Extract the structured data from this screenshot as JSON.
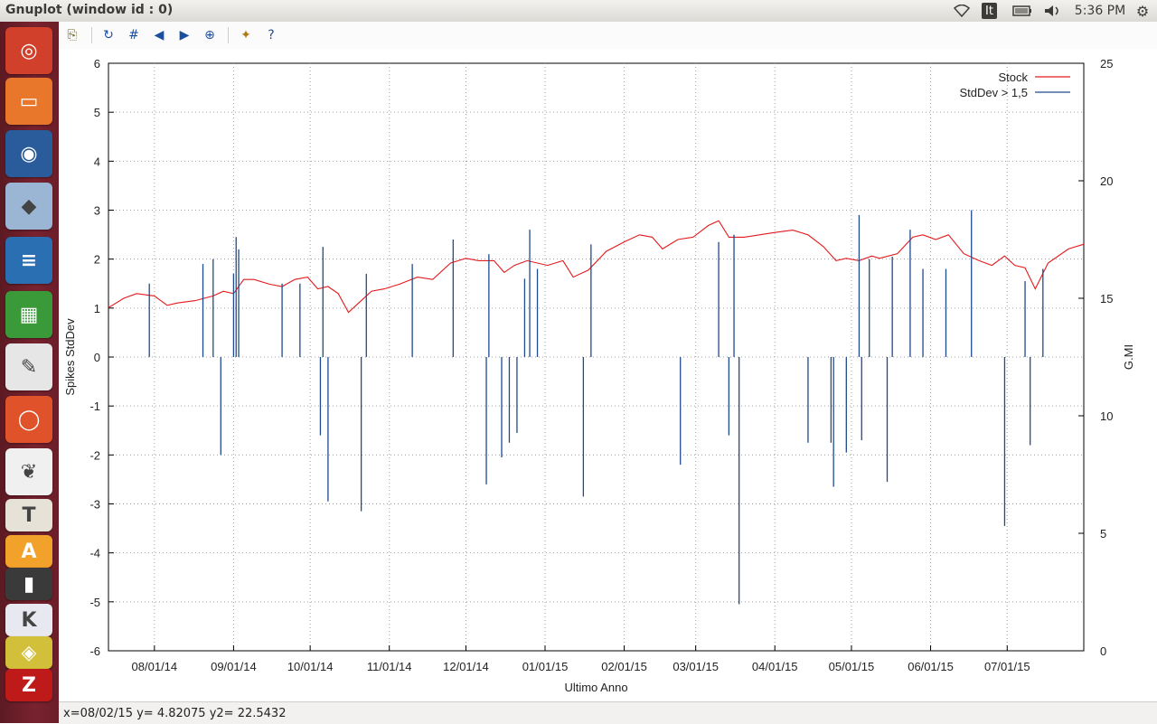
{
  "window": {
    "title": "Gnuplot (window id : 0)"
  },
  "tray": {
    "keyboard": "It",
    "time": "5:36 PM"
  },
  "launcher": {
    "items": [
      {
        "name": "ubuntu-dash-icon",
        "color": "#d0402a",
        "glyph": "◎"
      },
      {
        "name": "files-icon",
        "color": "#e8762b",
        "glyph": "▭"
      },
      {
        "name": "firefox-icon",
        "color": "#2a5c9c",
        "glyph": "◉"
      },
      {
        "name": "virtualbox-icon",
        "color": "#9ab6d4",
        "glyph": "◆"
      },
      {
        "name": "libreoffice-writer-icon",
        "color": "#2b6fb3",
        "glyph": "≡"
      },
      {
        "name": "libreoffice-calc-icon",
        "color": "#3a9a3a",
        "glyph": "▦"
      },
      {
        "name": "text-editor-icon",
        "color": "#e6e6e6",
        "glyph": "✎"
      },
      {
        "name": "app-icon",
        "color": "#e0532a",
        "glyph": "◯"
      },
      {
        "name": "pdf-viewer-icon",
        "color": "#f0f0f0",
        "glyph": "❦"
      },
      {
        "name": "tex-icon",
        "color": "#e7e2d8",
        "glyph": "T"
      },
      {
        "name": "app-icon-2",
        "color": "#f2a12b",
        "glyph": "A"
      },
      {
        "name": "terminal-icon",
        "color": "#3a3a3a",
        "glyph": "▮"
      },
      {
        "name": "app-icon-3",
        "color": "#e8e8f0",
        "glyph": "K"
      },
      {
        "name": "app-icon-4",
        "color": "#d2c03a",
        "glyph": "◈"
      },
      {
        "name": "filezilla-icon",
        "color": "#bf1a1a",
        "glyph": "Z"
      }
    ]
  },
  "toolbar": {
    "buttons": [
      {
        "name": "copy-clipboard-icon",
        "glyph": "⎘"
      },
      {
        "name": "replot-icon",
        "glyph": "↻"
      },
      {
        "name": "grid-icon",
        "glyph": "#"
      },
      {
        "name": "zoom-previous-icon",
        "glyph": "◀"
      },
      {
        "name": "zoom-next-icon",
        "glyph": "▶"
      },
      {
        "name": "autoscale-icon",
        "glyph": "⊕"
      },
      {
        "name": "settings-icon",
        "glyph": "✦"
      },
      {
        "name": "help-icon",
        "glyph": "?"
      }
    ]
  },
  "status": {
    "text": "x=08/02/15 y= 4.82075 y2= 22.5432"
  },
  "colors": {
    "stock": "#e41a1c",
    "stddev": "#1f4a8c",
    "grid": "#a0a0a0"
  },
  "chart_data": {
    "type": "line",
    "xlabel": "Ultimo Anno",
    "ylabel": "Spikes StdDev",
    "y2label": "G.MI",
    "x_ticks": [
      "08/01/14",
      "09/01/14",
      "10/01/14",
      "11/01/14",
      "12/01/14",
      "01/01/15",
      "02/01/15",
      "03/01/15",
      "04/01/15",
      "05/01/15",
      "06/01/15",
      "07/01/15"
    ],
    "xlim": [
      "2014-07-14",
      "2015-07-31"
    ],
    "ylim": [
      -6,
      6
    ],
    "y_ticks": [
      -6,
      -5,
      -4,
      -3,
      -2,
      -1,
      0,
      1,
      2,
      3,
      4,
      5,
      6
    ],
    "y2lim": [
      0,
      25
    ],
    "y2_ticks": [
      0,
      5,
      10,
      15,
      20,
      25
    ],
    "grid": true,
    "legend_position": "top-right",
    "legend": [
      "Stock",
      "StdDev > 1,5"
    ],
    "series": [
      {
        "name": "Stock",
        "axis": "y2",
        "x": [
          "2014-07-14",
          "2014-07-20",
          "2014-07-25",
          "2014-08-01",
          "2014-08-06",
          "2014-08-10",
          "2014-08-17",
          "2014-08-24",
          "2014-08-28",
          "2014-09-01",
          "2014-09-05",
          "2014-09-09",
          "2014-09-15",
          "2014-09-20",
          "2014-09-25",
          "2014-09-30",
          "2014-10-04",
          "2014-10-08",
          "2014-10-12",
          "2014-10-16",
          "2014-10-20",
          "2014-10-25",
          "2014-10-30",
          "2014-11-05",
          "2014-11-12",
          "2014-11-18",
          "2014-11-25",
          "2014-12-01",
          "2014-12-06",
          "2014-12-12",
          "2014-12-16",
          "2014-12-20",
          "2014-12-25",
          "2015-01-02",
          "2015-01-08",
          "2015-01-12",
          "2015-01-18",
          "2015-01-25",
          "2015-02-01",
          "2015-02-07",
          "2015-02-12",
          "2015-02-16",
          "2015-02-22",
          "2015-02-28",
          "2015-03-06",
          "2015-03-10",
          "2015-03-14",
          "2015-03-20",
          "2015-03-26",
          "2015-04-01",
          "2015-04-08",
          "2015-04-14",
          "2015-04-20",
          "2015-04-25",
          "2015-04-29",
          "2015-05-04",
          "2015-05-09",
          "2015-05-12",
          "2015-05-19",
          "2015-05-25",
          "2015-05-29",
          "2015-06-03",
          "2015-06-08",
          "2015-06-14",
          "2015-06-20",
          "2015-06-25",
          "2015-06-30",
          "2015-07-04",
          "2015-07-08",
          "2015-07-12",
          "2015-07-17",
          "2015-07-25",
          "2015-07-31"
        ],
        "values": [
          14.6,
          15.0,
          15.2,
          15.1,
          14.7,
          14.8,
          14.9,
          15.1,
          15.3,
          15.2,
          15.8,
          15.8,
          15.6,
          15.5,
          15.8,
          15.9,
          15.4,
          15.5,
          15.2,
          14.4,
          14.8,
          15.3,
          15.4,
          15.6,
          15.9,
          15.8,
          16.5,
          16.7,
          16.6,
          16.6,
          16.1,
          16.4,
          16.6,
          16.4,
          16.6,
          15.9,
          16.2,
          17.0,
          17.4,
          17.7,
          17.6,
          17.1,
          17.5,
          17.6,
          18.1,
          18.3,
          17.6,
          17.6,
          17.7,
          17.8,
          17.9,
          17.7,
          17.2,
          16.6,
          16.7,
          16.6,
          16.8,
          16.7,
          16.9,
          17.6,
          17.7,
          17.5,
          17.7,
          16.9,
          16.6,
          16.4,
          16.8,
          16.4,
          16.3,
          15.4,
          16.5,
          17.1,
          17.3
        ]
      },
      {
        "name": "StdDev > 1,5",
        "axis": "y",
        "style": "impulses",
        "x": [
          "2014-07-30",
          "2014-08-20",
          "2014-08-24",
          "2014-08-27",
          "2014-09-01",
          "2014-09-02",
          "2014-09-03",
          "2014-09-05",
          "2014-09-20",
          "2014-09-27",
          "2014-10-05",
          "2014-10-06",
          "2014-10-08",
          "2014-10-21",
          "2014-10-23",
          "2014-11-10",
          "2014-11-26",
          "2014-12-09",
          "2014-12-10",
          "2014-12-15",
          "2014-12-18",
          "2014-12-21",
          "2014-12-24",
          "2014-12-26",
          "2014-12-29",
          "2015-01-16",
          "2015-01-19",
          "2015-02-23",
          "2015-03-10",
          "2015-03-14",
          "2015-03-16",
          "2015-03-18",
          "2015-03-19",
          "2015-04-14",
          "2015-04-23",
          "2015-04-24",
          "2015-04-29",
          "2015-05-04",
          "2015-05-05",
          "2015-05-08",
          "2015-05-15",
          "2015-05-17",
          "2015-05-24",
          "2015-05-29",
          "2015-06-07",
          "2015-06-17",
          "2015-06-30",
          "2015-07-08",
          "2015-07-10",
          "2015-07-15",
          "2015-07-18"
        ],
        "values": [
          1.5,
          1.9,
          2.0,
          -2.0,
          1.7,
          2.45,
          2.2,
          0,
          1.5,
          1.5,
          -1.6,
          2.25,
          -2.95,
          -3.15,
          1.7,
          1.9,
          2.4,
          -2.6,
          2.1,
          -2.05,
          -1.75,
          -1.55,
          1.6,
          2.6,
          1.8,
          -2.85,
          2.3,
          -2.2,
          2.35,
          -1.6,
          2.5,
          -5.05,
          0,
          -1.75,
          -1.75,
          -2.65,
          -1.95,
          2.9,
          -1.7,
          2.0,
          -2.55,
          2.05,
          2.6,
          1.8,
          1.8,
          3.0,
          -3.45,
          1.55,
          -1.8,
          1.8,
          0
        ]
      }
    ]
  }
}
